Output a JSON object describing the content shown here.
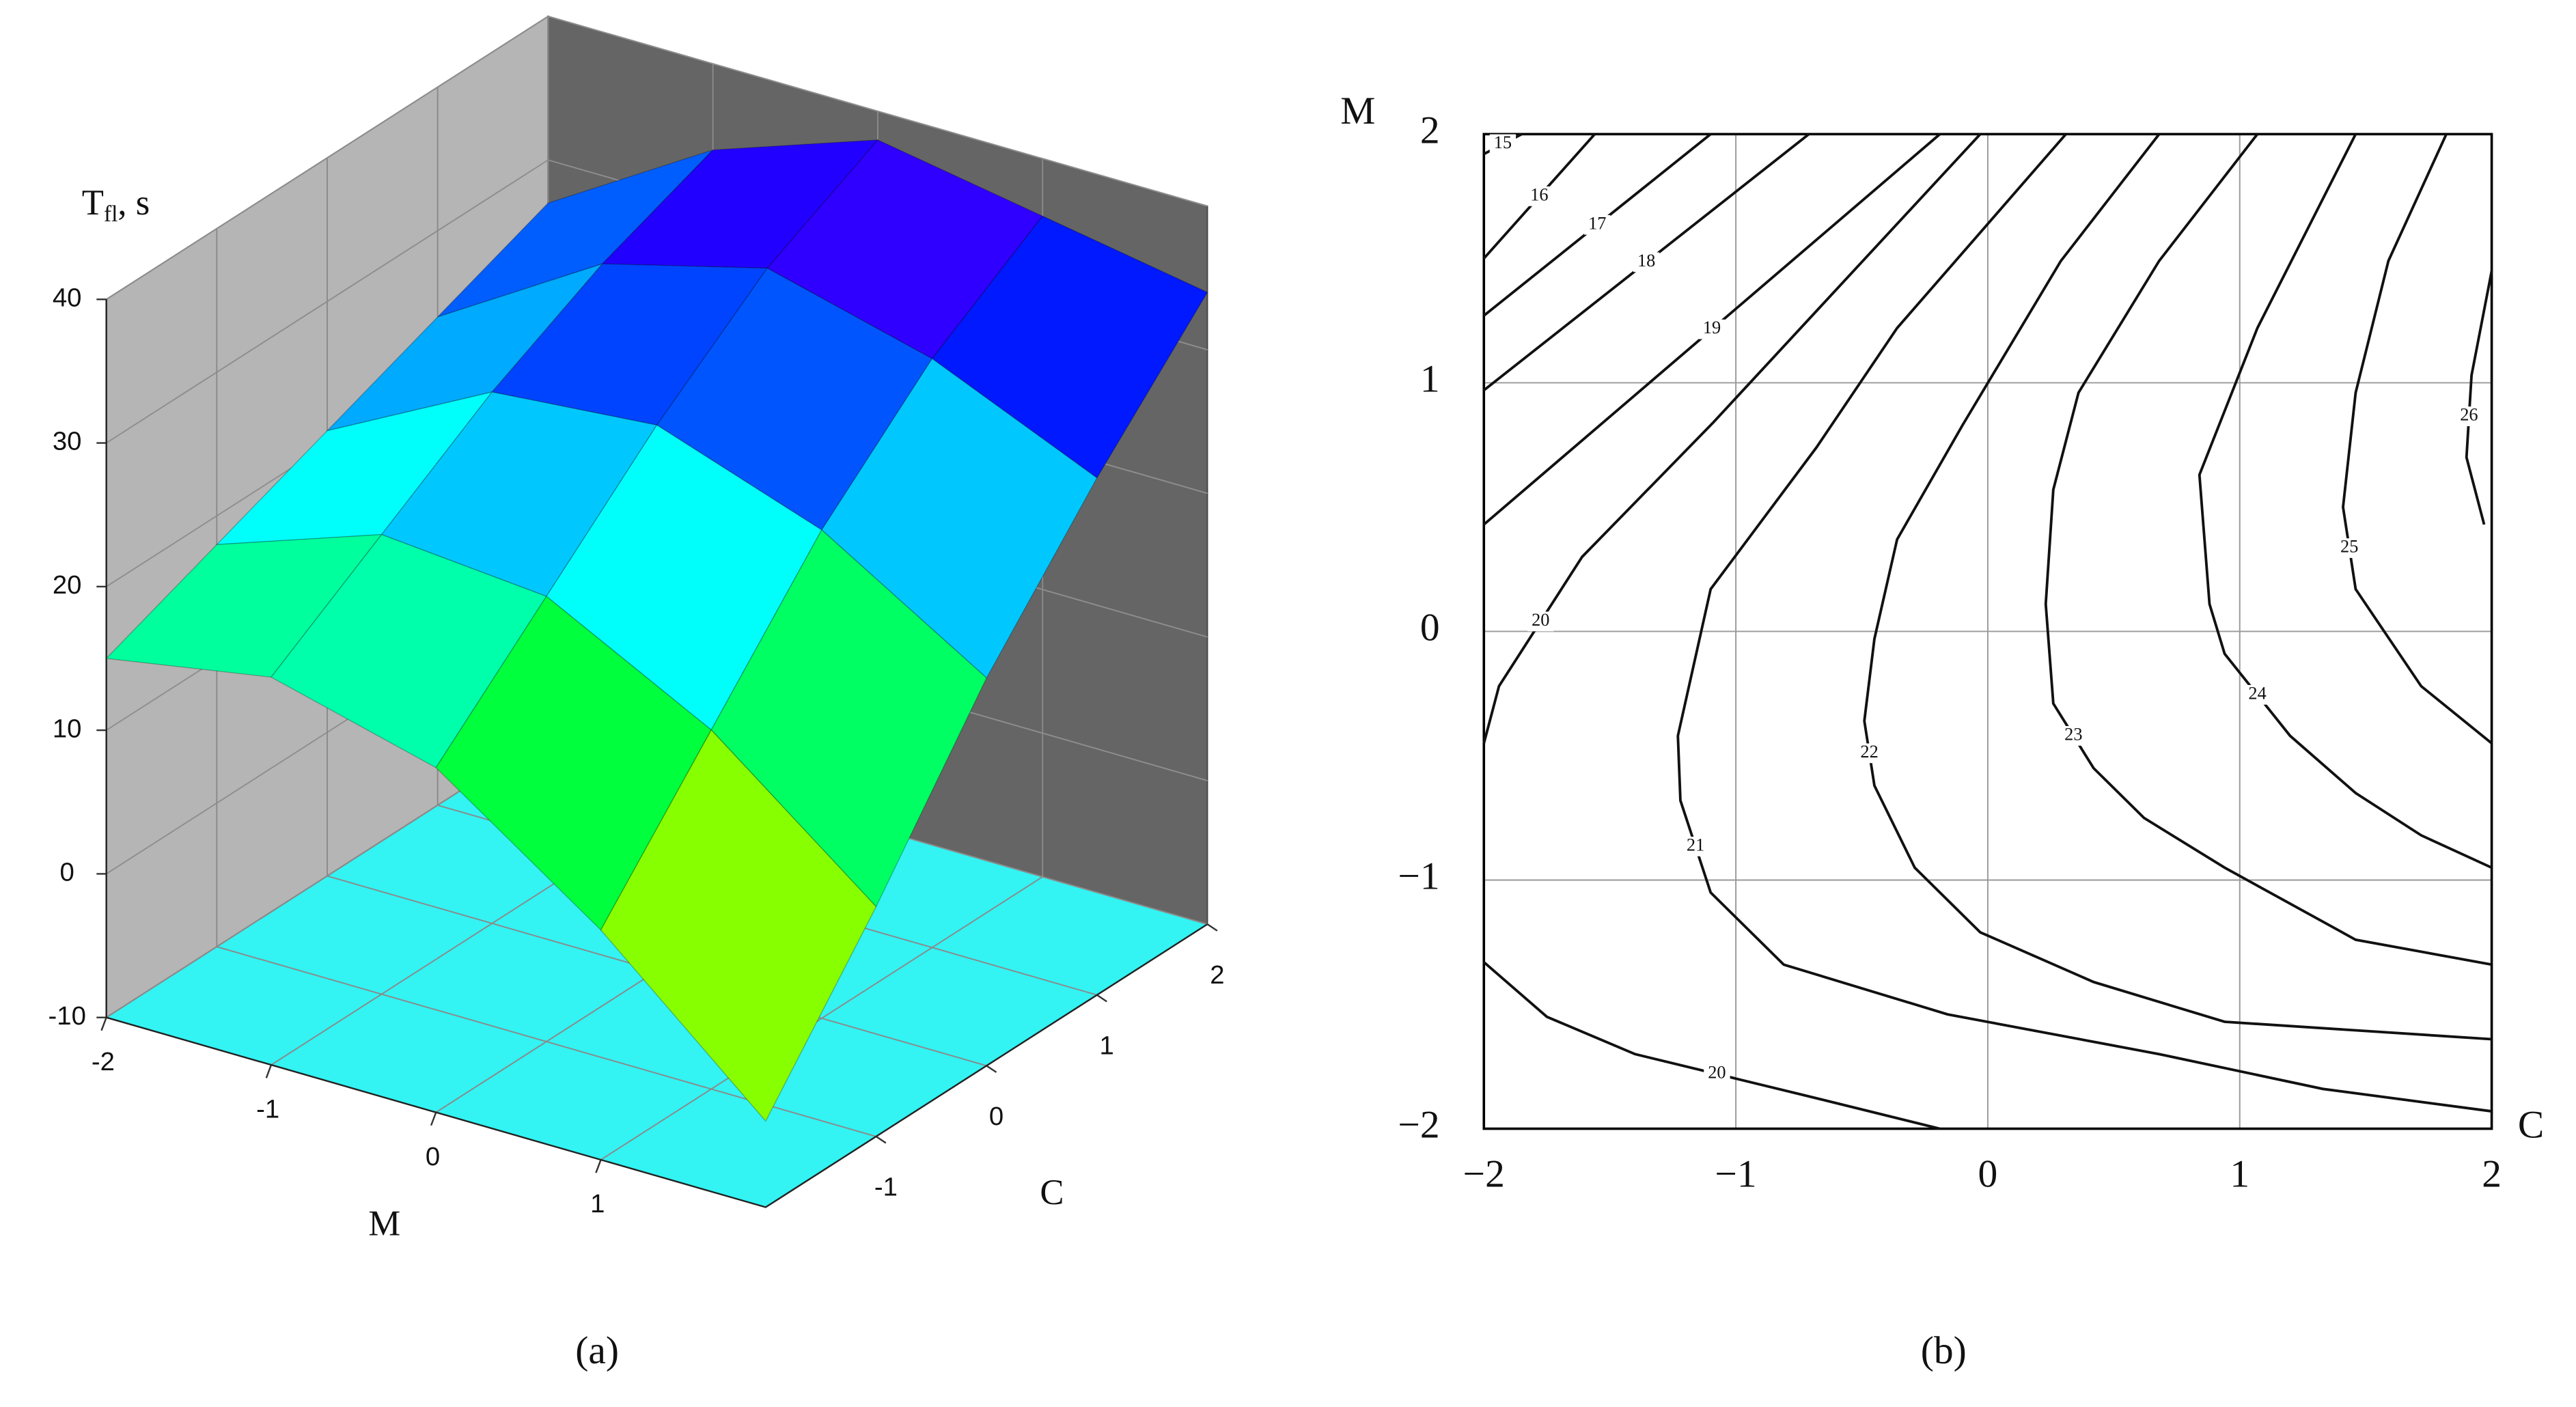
{
  "chart_data": [
    {
      "type": "surface",
      "panel": "(a)",
      "zlabel": "T",
      "zlabel_sub": "fl",
      "zlabel_unit": ", s",
      "xlabel": "M",
      "ylabel": "C",
      "x": [
        -2,
        -1,
        0,
        1,
        2
      ],
      "y": [
        -2,
        -1,
        0,
        1,
        2
      ],
      "z": [
        [
          15,
          18,
          21,
          24,
          27
        ],
        [
          17,
          22,
          27,
          31,
          34
        ],
        [
          14,
          21,
          28,
          34,
          38
        ],
        [
          6,
          15,
          24,
          31,
          36
        ],
        [
          -4,
          6,
          17,
          26,
          34
        ]
      ],
      "xlim": [
        -2,
        2
      ],
      "ylim": [
        -2,
        2
      ],
      "zlim": [
        -10,
        40
      ],
      "xticks": [
        -2,
        -1,
        0,
        1
      ],
      "yticks": [
        -1,
        0,
        1,
        2
      ],
      "zticks": [
        -10,
        0,
        10,
        20,
        30,
        40
      ]
    },
    {
      "type": "contour",
      "panel": "(b)",
      "xlabel": "C",
      "ylabel": "M",
      "xlim": [
        -2,
        2
      ],
      "ylim": [
        -2,
        2
      ],
      "xticks": [
        {
          "value": -2,
          "label": "−2"
        },
        {
          "value": -1,
          "label": "−1"
        },
        0,
        1,
        2
      ],
      "yticks": [
        {
          "value": -2,
          "label": "−2"
        },
        {
          "value": -1,
          "label": "−1"
        },
        0,
        1,
        2
      ],
      "grid": true,
      "contours": [
        {
          "level": 15,
          "x": [
            -2,
            -1.85
          ],
          "y": [
            1.92,
            2
          ]
        },
        {
          "level": 16,
          "x": [
            -2,
            -1.56
          ],
          "y": [
            1.5,
            2
          ]
        },
        {
          "level": 17,
          "x": [
            -2,
            -1.1
          ],
          "y": [
            1.27,
            2
          ]
        },
        {
          "level": 18,
          "x": [
            -2,
            -0.71
          ],
          "y": [
            0.97,
            2
          ]
        },
        {
          "level": 19,
          "x": [
            -2,
            -0.19
          ],
          "y": [
            0.43,
            2
          ]
        },
        {
          "level": 20,
          "x": [
            -0.03,
            -1.09,
            -1.61,
            -1.94,
            -2
          ],
          "y": [
            2,
            0.84,
            0.3,
            -0.22,
            -0.45
          ]
        },
        {
          "level": 21,
          "x": [
            0.31,
            -0.36,
            -0.68,
            -1.1,
            -1.23,
            -1.22,
            -1.1,
            -0.81,
            -0.16,
            0.68,
            1.33,
            2
          ],
          "y": [
            2,
            1.22,
            0.74,
            0.17,
            -0.42,
            -0.68,
            -1.05,
            -1.34,
            -1.54,
            -1.7,
            -1.84,
            -1.93
          ]
        },
        {
          "level": 20,
          "x": [
            -2,
            -1.75,
            -1.4,
            -0.75,
            -0.19
          ],
          "y": [
            -1.33,
            -1.55,
            -1.7,
            -1.86,
            -2
          ]
        },
        {
          "level": 22,
          "x": [
            0.68,
            0.29,
            -0.1,
            -0.36,
            -0.45,
            -0.49,
            -0.45,
            -0.29,
            -0.03,
            0.42,
            0.94,
            2
          ],
          "y": [
            2,
            1.49,
            0.83,
            0.37,
            -0.03,
            -0.36,
            -0.62,
            -0.95,
            -1.21,
            -1.41,
            -1.57,
            -1.64
          ]
        },
        {
          "level": 23,
          "x": [
            1.07,
            0.68,
            0.36,
            0.26,
            0.23,
            0.26,
            0.42,
            0.62,
            0.94,
            1.46,
            2
          ],
          "y": [
            2,
            1.49,
            0.96,
            0.57,
            0.11,
            -0.29,
            -0.55,
            -0.75,
            -0.95,
            -1.24,
            -1.34
          ]
        },
        {
          "level": 24,
          "x": [
            1.46,
            1.07,
            0.84,
            0.88,
            0.94,
            1.2,
            1.46,
            1.72,
            2
          ],
          "y": [
            2,
            1.22,
            0.63,
            0.11,
            -0.09,
            -0.42,
            -0.65,
            -0.82,
            -0.95
          ]
        },
        {
          "level": 25,
          "x": [
            1.82,
            1.59,
            1.46,
            1.41,
            1.46,
            1.72,
            2
          ],
          "y": [
            2,
            1.49,
            0.96,
            0.5,
            0.17,
            -0.22,
            -0.45
          ]
        },
        {
          "level": 26,
          "x": [
            2,
            1.92,
            1.9,
            1.97
          ],
          "y": [
            1.45,
            1.03,
            0.7,
            0.43
          ]
        }
      ]
    }
  ]
}
